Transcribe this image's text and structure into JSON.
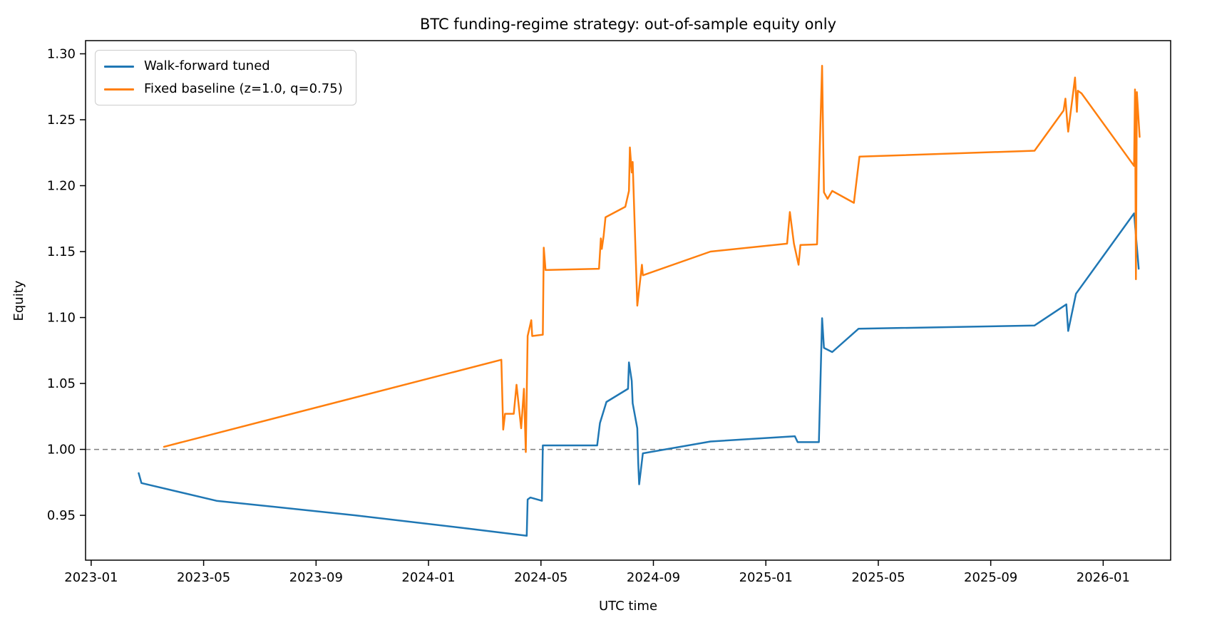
{
  "figure": {
    "title": "BTC funding-regime strategy: out-of-sample equity only",
    "xlabel": "UTC time",
    "ylabel": "Equity"
  },
  "legend": {
    "position": "upper-left",
    "items": [
      {
        "label": "Walk-forward tuned",
        "color": "#1f77b4"
      },
      {
        "label": "Fixed baseline (z=1.0, q=0.75)",
        "color": "#ff7f0e"
      }
    ]
  },
  "chart_data": {
    "type": "line",
    "title": "BTC funding-regime strategy: out-of-sample equity only",
    "xlabel": "UTC time",
    "ylabel": "Equity",
    "grid": false,
    "legend_position": "upper-left",
    "x_axis": {
      "kind": "time",
      "tick_labels": [
        "2023-01",
        "2023-05",
        "2023-09",
        "2024-01",
        "2024-05",
        "2024-09",
        "2025-01",
        "2025-05",
        "2025-09",
        "2026-01"
      ],
      "tick_months_since_2023_01": [
        0,
        4,
        8,
        12,
        16,
        20,
        24,
        28,
        32,
        36
      ],
      "xlim_months_since_2023_01": [
        -0.2,
        38.4
      ]
    },
    "y_axis": {
      "tick_values": [
        0.95,
        1.0,
        1.05,
        1.1,
        1.15,
        1.2,
        1.25,
        1.3
      ],
      "ylim": [
        0.916,
        1.31
      ]
    },
    "reference_line": {
      "y": 1.0,
      "style": "dashed",
      "color": "#7f7f7f"
    },
    "series": [
      {
        "name": "Walk-forward tuned",
        "color": "#1f77b4",
        "line_width": 2.5,
        "points": [
          [
            "2023-02-22",
            0.982
          ],
          [
            "2023-02-25",
            0.9745
          ],
          [
            "2023-05-15",
            0.961
          ],
          [
            "2023-10-13",
            0.95
          ],
          [
            "2024-02-13",
            0.94
          ],
          [
            "2024-04-16",
            0.9345
          ],
          [
            "2024-04-17",
            0.962
          ],
          [
            "2024-04-20",
            0.9635
          ],
          [
            "2024-05-02",
            0.961
          ],
          [
            "2024-05-03",
            1.003
          ],
          [
            "2024-07-01",
            1.003
          ],
          [
            "2024-07-04",
            1.02
          ],
          [
            "2024-07-11",
            1.036
          ],
          [
            "2024-08-04",
            1.046
          ],
          [
            "2024-08-05",
            1.066
          ],
          [
            "2024-08-08",
            1.052
          ],
          [
            "2024-08-09",
            1.035
          ],
          [
            "2024-08-14",
            1.016
          ],
          [
            "2024-08-15",
            0.99
          ],
          [
            "2024-08-16",
            0.9735
          ],
          [
            "2024-08-20",
            0.997
          ],
          [
            "2024-11-02",
            1.006
          ],
          [
            "2025-02-02",
            1.01
          ],
          [
            "2025-02-05",
            1.0055
          ],
          [
            "2025-02-28",
            1.0055
          ],
          [
            "2025-03-01",
            1.0995
          ],
          [
            "2025-03-03",
            1.077
          ],
          [
            "2025-03-12",
            1.0738
          ],
          [
            "2025-04-10",
            1.0915
          ],
          [
            "2025-10-18",
            1.094
          ],
          [
            "2025-11-22",
            1.11
          ],
          [
            "2025-11-24",
            1.0898
          ],
          [
            "2025-12-02",
            1.118
          ],
          [
            "2026-02-04",
            1.179
          ],
          [
            "2026-02-09",
            1.137
          ]
        ]
      },
      {
        "name": "Fixed baseline (z=1.0, q=0.75)",
        "color": "#ff7f0e",
        "line_width": 2.5,
        "points": [
          [
            "2023-03-19",
            1.002
          ],
          [
            "2024-03-19",
            1.068
          ],
          [
            "2024-03-21",
            1.015
          ],
          [
            "2024-03-23",
            1.027
          ],
          [
            "2024-04-02",
            1.027
          ],
          [
            "2024-04-05",
            1.049
          ],
          [
            "2024-04-10",
            1.016
          ],
          [
            "2024-04-13",
            1.046
          ],
          [
            "2024-04-15",
            0.998
          ],
          [
            "2024-04-17",
            1.086
          ],
          [
            "2024-04-21",
            1.098
          ],
          [
            "2024-04-22",
            1.086
          ],
          [
            "2024-05-03",
            1.087
          ],
          [
            "2024-05-04",
            1.153
          ],
          [
            "2024-05-06",
            1.136
          ],
          [
            "2024-07-03",
            1.137
          ],
          [
            "2024-07-05",
            1.16
          ],
          [
            "2024-07-06",
            1.152
          ],
          [
            "2024-07-08",
            1.162
          ],
          [
            "2024-07-10",
            1.176
          ],
          [
            "2024-08-01",
            1.184
          ],
          [
            "2024-08-05",
            1.196
          ],
          [
            "2024-08-06",
            1.229
          ],
          [
            "2024-08-08",
            1.21
          ],
          [
            "2024-08-09",
            1.218
          ],
          [
            "2024-08-14",
            1.109
          ],
          [
            "2024-08-19",
            1.14
          ],
          [
            "2024-08-20",
            1.132
          ],
          [
            "2024-11-02",
            1.15
          ],
          [
            "2025-01-24",
            1.156
          ],
          [
            "2025-01-27",
            1.18
          ],
          [
            "2025-02-01",
            1.156
          ],
          [
            "2025-02-06",
            1.14
          ],
          [
            "2025-02-08",
            1.155
          ],
          [
            "2025-02-26",
            1.1555
          ],
          [
            "2025-03-01",
            1.291
          ],
          [
            "2025-03-03",
            1.195
          ],
          [
            "2025-03-07",
            1.19
          ],
          [
            "2025-03-12",
            1.196
          ],
          [
            "2025-04-05",
            1.187
          ],
          [
            "2025-04-11",
            1.222
          ],
          [
            "2025-10-18",
            1.2265
          ],
          [
            "2025-11-19",
            1.257
          ],
          [
            "2025-11-21",
            1.266
          ],
          [
            "2025-11-23",
            1.248
          ],
          [
            "2025-11-24",
            1.241
          ],
          [
            "2025-12-01",
            1.282
          ],
          [
            "2025-12-03",
            1.256
          ],
          [
            "2025-12-04",
            1.272
          ],
          [
            "2025-12-08",
            1.27
          ],
          [
            "2026-02-04",
            1.215
          ],
          [
            "2026-02-05",
            1.273
          ],
          [
            "2026-02-06",
            1.129
          ],
          [
            "2026-02-07",
            1.271
          ],
          [
            "2026-02-10",
            1.237
          ]
        ]
      }
    ]
  }
}
